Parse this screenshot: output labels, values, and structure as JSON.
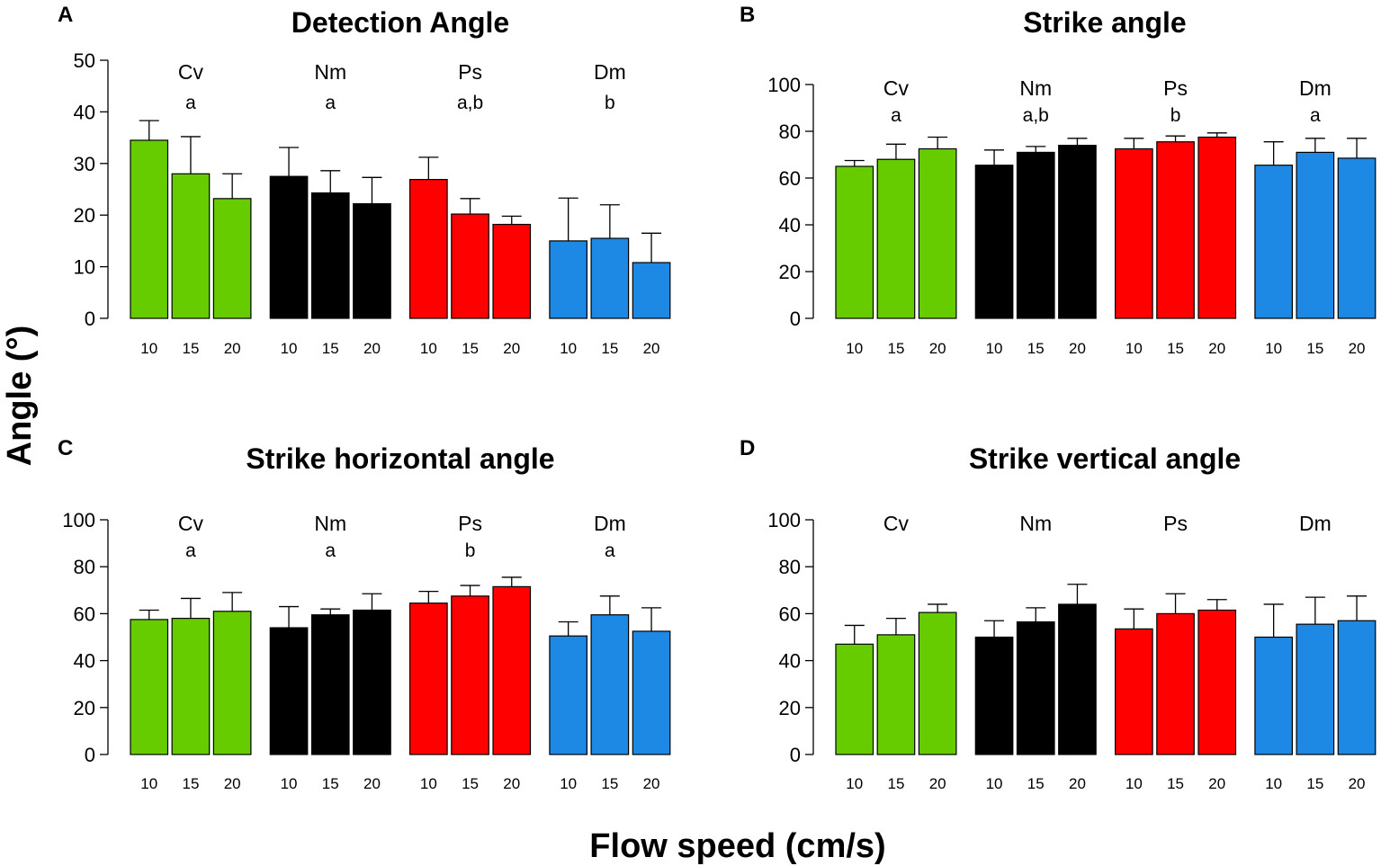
{
  "figure": {
    "ylabel": "Angle (°)",
    "xlabel": "Flow speed (cm/s)"
  },
  "colors": {
    "Cv": "#66cc00",
    "Nm": "#000000",
    "Ps": "#ff0000",
    "Dm": "#1e88e5"
  },
  "chart_data": [
    {
      "type": "bar",
      "panel": "A",
      "title": "Detection  Angle",
      "groups": [
        "Cv",
        "Nm",
        "Ps",
        "Dm"
      ],
      "significance": [
        "a",
        "a",
        "a,b",
        "b"
      ],
      "categories": [
        "10",
        "15",
        "20"
      ],
      "series": [
        {
          "name": "Cv",
          "values": [
            34.5,
            28.0,
            23.2
          ],
          "errors": [
            3.8,
            7.2,
            4.8
          ]
        },
        {
          "name": "Nm",
          "values": [
            27.5,
            24.3,
            22.2
          ],
          "errors": [
            5.6,
            4.3,
            5.1
          ]
        },
        {
          "name": "Ps",
          "values": [
            26.9,
            20.2,
            18.2
          ],
          "errors": [
            4.3,
            3.0,
            1.6
          ]
        },
        {
          "name": "Dm",
          "values": [
            15.0,
            15.5,
            10.8
          ],
          "errors": [
            8.3,
            6.5,
            5.7
          ]
        }
      ],
      "ylim": [
        0,
        50
      ],
      "yticks": [
        0,
        10,
        20,
        30,
        40,
        50
      ]
    },
    {
      "type": "bar",
      "panel": "B",
      "title": "Strike  angle",
      "groups": [
        "Cv",
        "Nm",
        "Ps",
        "Dm"
      ],
      "significance": [
        "a",
        "a,b",
        "b",
        "a"
      ],
      "categories": [
        "10",
        "15",
        "20"
      ],
      "series": [
        {
          "name": "Cv",
          "values": [
            65,
            68,
            72.5
          ],
          "errors": [
            2.5,
            6.5,
            5.0
          ]
        },
        {
          "name": "Nm",
          "values": [
            65.5,
            71,
            74
          ],
          "errors": [
            6.5,
            2.5,
            3.0
          ]
        },
        {
          "name": "Ps",
          "values": [
            72.5,
            75.5,
            77.5
          ],
          "errors": [
            4.5,
            2.5,
            1.8
          ]
        },
        {
          "name": "Dm",
          "values": [
            65.5,
            71,
            68.5
          ],
          "errors": [
            10.0,
            6.0,
            8.5
          ]
        }
      ],
      "ylim": [
        0,
        100
      ],
      "yticks": [
        0,
        20,
        40,
        60,
        80,
        100
      ]
    },
    {
      "type": "bar",
      "panel": "C",
      "title": "Strike horizontal angle",
      "groups": [
        "Cv",
        "Nm",
        "Ps",
        "Dm"
      ],
      "significance": [
        "a",
        "a",
        "b",
        "a"
      ],
      "categories": [
        "10",
        "15",
        "20"
      ],
      "series": [
        {
          "name": "Cv",
          "values": [
            57.5,
            58,
            61
          ],
          "errors": [
            4.0,
            8.5,
            8.0
          ]
        },
        {
          "name": "Nm",
          "values": [
            54,
            59.5,
            61.5
          ],
          "errors": [
            9.0,
            2.5,
            7.0
          ]
        },
        {
          "name": "Ps",
          "values": [
            64.5,
            67.5,
            71.5
          ],
          "errors": [
            5.0,
            4.5,
            4.0
          ]
        },
        {
          "name": "Dm",
          "values": [
            50.5,
            59.5,
            52.5
          ],
          "errors": [
            6.0,
            8.0,
            10.0
          ]
        }
      ],
      "ylim": [
        0,
        100
      ],
      "yticks": [
        0,
        20,
        40,
        60,
        80,
        100
      ]
    },
    {
      "type": "bar",
      "panel": "D",
      "title": "Strike vertical angle",
      "groups": [
        "Cv",
        "Nm",
        "Ps",
        "Dm"
      ],
      "significance": [
        "",
        "",
        "",
        ""
      ],
      "categories": [
        "10",
        "15",
        "20"
      ],
      "series": [
        {
          "name": "Cv",
          "values": [
            47,
            51,
            60.5
          ],
          "errors": [
            8.0,
            7.0,
            3.5
          ]
        },
        {
          "name": "Nm",
          "values": [
            50,
            56.5,
            64
          ],
          "errors": [
            7.0,
            6.0,
            8.5
          ]
        },
        {
          "name": "Ps",
          "values": [
            53.5,
            60,
            61.5
          ],
          "errors": [
            8.5,
            8.5,
            4.5
          ]
        },
        {
          "name": "Dm",
          "values": [
            50,
            55.5,
            57
          ],
          "errors": [
            14.0,
            11.5,
            10.5
          ]
        }
      ],
      "ylim": [
        0,
        100
      ],
      "yticks": [
        0,
        20,
        40,
        60,
        80,
        100
      ]
    }
  ]
}
